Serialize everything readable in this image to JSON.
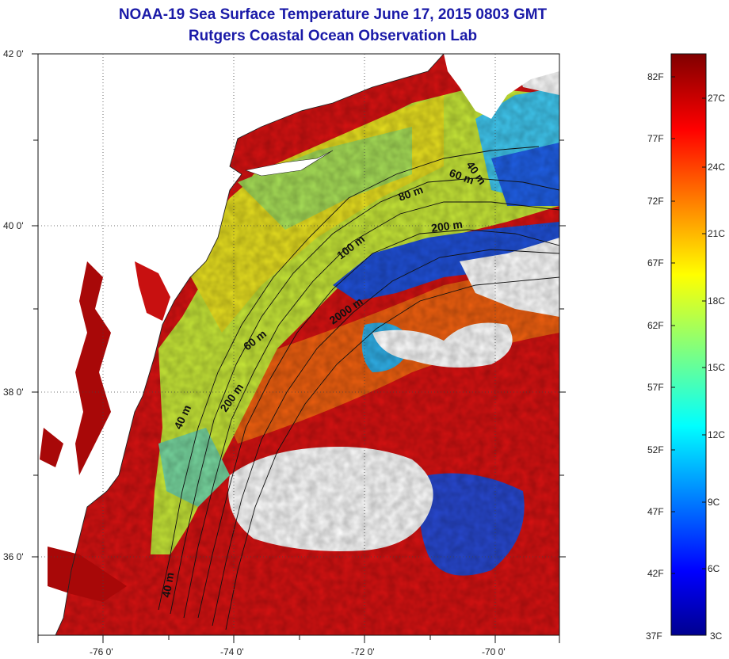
{
  "titles": {
    "line1": "NOAA-19 Sea Surface Temperature June 17, 2015 0803 GMT",
    "line2": "Rutgers Coastal Ocean Observation Lab"
  },
  "map": {
    "lat_labels": [
      "42 0'",
      "40 0'",
      "38 0'",
      "36 0'"
    ],
    "lon_labels": [
      "-76 0'",
      "-74 0'",
      "-72 0'",
      "-70 0'"
    ],
    "isobath_labels": [
      "40 m",
      "60 m",
      "80 m",
      "200 m",
      "100 m",
      "2000 m",
      "60 m",
      "200 m",
      "40 m",
      "40 m"
    ],
    "colors": {
      "land": "#ffffff",
      "cloud": "#ffffff",
      "warm_water": "#d01010",
      "shelf_water": "#a8e040",
      "cold_water": "#1840d0",
      "estuary": "#a00000"
    }
  },
  "colorbar": {
    "fahrenheit_labels": [
      "82F",
      "77F",
      "72F",
      "67F",
      "62F",
      "57F",
      "52F",
      "47F",
      "42F",
      "37F"
    ],
    "celsius_labels": [
      "27C",
      "24C",
      "21C",
      "18C",
      "15C",
      "12C",
      "9C",
      "6C",
      "3C"
    ],
    "colormap": "jet",
    "range_f": [
      37,
      84
    ]
  }
}
